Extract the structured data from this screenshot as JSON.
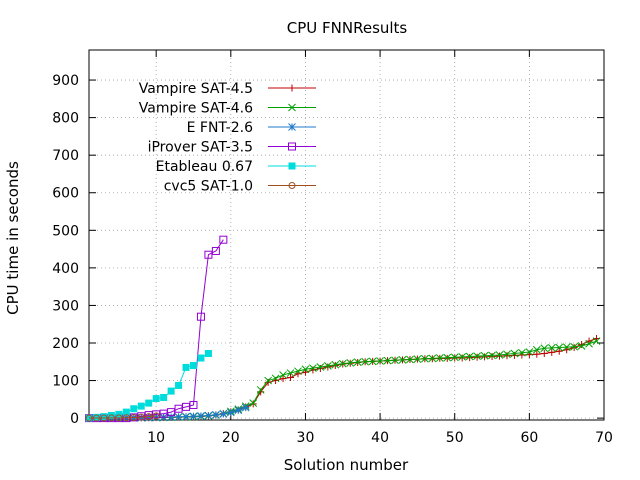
{
  "chart_data": {
    "type": "line",
    "title": "CPU FNNResults",
    "xlabel": "Solution number",
    "ylabel": "CPU time in seconds",
    "xlim": [
      1,
      70
    ],
    "ylim": [
      -5,
      980
    ],
    "xticks": [
      10,
      20,
      30,
      40,
      50,
      60,
      70
    ],
    "yticks": [
      0,
      100,
      200,
      300,
      400,
      500,
      600,
      700,
      800,
      900
    ],
    "grid": true,
    "legend_position": "top-left",
    "series": [
      {
        "name": "Vampire SAT-4.5",
        "color": "#c00000",
        "marker": "plus",
        "values": [
          0.1,
          0.2,
          0.3,
          0.4,
          0.5,
          0.6,
          0.7,
          0.8,
          1,
          1.2,
          1.5,
          2,
          2.5,
          3,
          3.5,
          4.5,
          6,
          8,
          12,
          17,
          22,
          30,
          38,
          70,
          95,
          100,
          105,
          108,
          118,
          122,
          128,
          132,
          136,
          140,
          144,
          146,
          148,
          150,
          151,
          152,
          153,
          154,
          155,
          156,
          157,
          158,
          158,
          159,
          159,
          160,
          160,
          161,
          162,
          163,
          164,
          165,
          166,
          167,
          168,
          169,
          170,
          172,
          175,
          178,
          182,
          188,
          196,
          205,
          212
        ]
      },
      {
        "name": "Vampire SAT-4.6",
        "color": "#00a000",
        "marker": "cross",
        "values": [
          0.1,
          0.2,
          0.3,
          0.4,
          0.5,
          0.6,
          0.7,
          0.8,
          1,
          1.2,
          1.5,
          2,
          2.5,
          3,
          3.5,
          4.5,
          6,
          8,
          12,
          18,
          24,
          32,
          40,
          75,
          100,
          106,
          115,
          120,
          125,
          130,
          133,
          136,
          139,
          142,
          145,
          147,
          149,
          150,
          151,
          152,
          153,
          154,
          155,
          156,
          157,
          158,
          159,
          160,
          161,
          162,
          163,
          164,
          165,
          166,
          167,
          168,
          170,
          172,
          174,
          176,
          182,
          186,
          187,
          188,
          189,
          190,
          192,
          198,
          205
        ]
      },
      {
        "name": "E FNT-2.6",
        "color": "#1e78c8",
        "marker": "star",
        "values": [
          0.1,
          0.2,
          0.3,
          0.4,
          0.5,
          0.7,
          0.9,
          1.2,
          1.6,
          2,
          2.5,
          3,
          3.5,
          4,
          5,
          6,
          7,
          9,
          11,
          15,
          21,
          28
        ]
      },
      {
        "name": "iProver SAT-3.5",
        "color": "#9400d3",
        "marker": "open-square",
        "values": [
          0,
          0,
          0,
          0,
          0,
          0,
          2,
          5,
          8,
          10,
          12,
          16,
          25,
          30,
          35,
          270,
          435,
          445,
          475
        ]
      },
      {
        "name": "Etableau 0.67",
        "color": "#00dcdc",
        "marker": "filled-square",
        "values": [
          0,
          2,
          4,
          7,
          10,
          16,
          25,
          32,
          40,
          52,
          55,
          72,
          87,
          135,
          140,
          160,
          172
        ]
      },
      {
        "name": "cvc5 SAT-1.0",
        "color": "#a05020",
        "marker": "open-circle",
        "values": [
          0.1,
          0.2,
          0.3,
          0.5,
          0.7,
          1,
          1.5,
          2.5,
          4,
          6
        ]
      }
    ]
  }
}
